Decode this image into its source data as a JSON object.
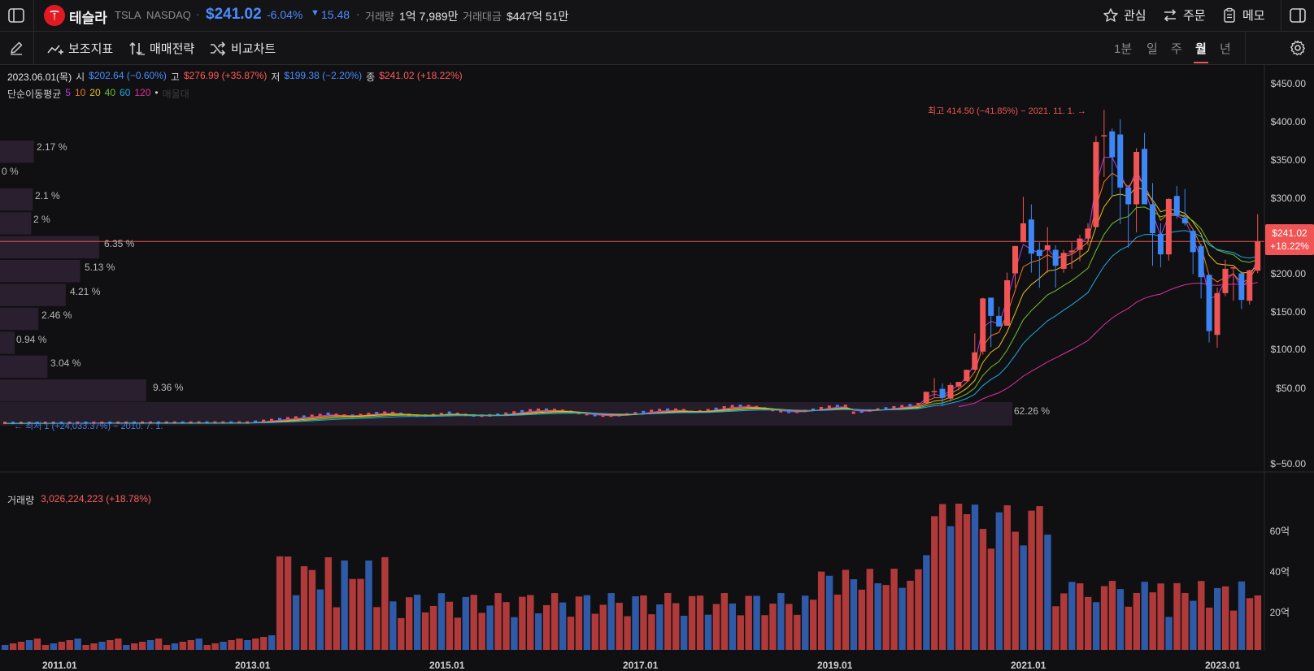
{
  "stock": {
    "name": "테슬라",
    "ticker": "TSLA",
    "exchange": "NASDAQ",
    "price": "$241.02",
    "change_pct": "-6.04%",
    "change_abs": "15.48",
    "volume_label": "거래량",
    "volume_value": "1억 7,989만",
    "amount_label": "거래대금",
    "amount_value": "$447억 51만"
  },
  "topbar": {
    "watch_label": "관심",
    "order_label": "주문",
    "memo_label": "메모"
  },
  "toolbar": {
    "indicator_label": "보조지표",
    "strategy_label": "매매전략",
    "compare_label": "비교차트",
    "periods": [
      "1분",
      "일",
      "주",
      "월",
      "년"
    ],
    "active_period": "월"
  },
  "ohlc": {
    "date": "2023.06.01(목)",
    "open_label": "시",
    "open": "$202.64 (−0.60%)",
    "high_label": "고",
    "high": "$276.99 (+35.87%)",
    "low_label": "저",
    "low": "$199.38 (−2.20%)",
    "close_label": "종",
    "close": "$241.02 (+18.22%)"
  },
  "ma": {
    "label": "단순이동평균",
    "periods": [
      {
        "p": "5",
        "color": "#b040e0"
      },
      {
        "p": "10",
        "color": "#f07820"
      },
      {
        "p": "20",
        "color": "#e8c020"
      },
      {
        "p": "40",
        "color": "#70c030"
      },
      {
        "p": "60",
        "color": "#20a8e0"
      },
      {
        "p": "120",
        "color": "#e030a0"
      }
    ],
    "trailing": "매물대"
  },
  "annotations": {
    "high": "최고 414.50 (−41.85%) − 2021. 11. 1. →",
    "low": "← 최저 1 (+24,033.37%) − 2010. 7. 1."
  },
  "price_axis": [
    "$450.00",
    "$400.00",
    "$350.00",
    "$300.00",
    "$200.00",
    "$150.00",
    "$100.00",
    "$50.00",
    "$−50.00"
  ],
  "price_tag": {
    "price": "$241.02",
    "pct": "+18.22%"
  },
  "volume_profile": [
    "2.17 %",
    "0 %",
    "2.1 %",
    "2 %",
    "6.35 %",
    "5.13 %",
    "4.21 %",
    "2.46 %",
    "0.94 %",
    "3.04 %",
    "9.36 %",
    "62.26 %"
  ],
  "volume_panel": {
    "label": "거래량",
    "value": "3,026,224,223 (+18.78%)",
    "axis": [
      "60억",
      "40억",
      "20억"
    ]
  },
  "time_axis": [
    "2011.01",
    "2013.01",
    "2015.01",
    "2017.01",
    "2019.01",
    "2021.01",
    "2023.01"
  ],
  "colors": {
    "up": "#f05454",
    "down": "#3d86f5",
    "accent": "#3d86f5",
    "background": "#101012"
  },
  "chart_data": {
    "type": "candlestick",
    "interval": "monthly",
    "y_unit": "USD",
    "ylim": [
      -50,
      470
    ],
    "candles": [
      {
        "x": "2020.01",
        "o": 28,
        "h": 43,
        "l": 28,
        "c": 43
      },
      {
        "x": "2020.02",
        "o": 44,
        "h": 61,
        "l": 36,
        "c": 44
      },
      {
        "x": "2020.03",
        "o": 47,
        "h": 54,
        "l": 24,
        "c": 35
      },
      {
        "x": "2020.04",
        "o": 34,
        "h": 55,
        "l": 30,
        "c": 52
      },
      {
        "x": "2020.05",
        "o": 50,
        "h": 56,
        "l": 45,
        "c": 56
      },
      {
        "x": "2020.06",
        "o": 57,
        "h": 72,
        "l": 57,
        "c": 72
      },
      {
        "x": "2020.07",
        "o": 72,
        "h": 120,
        "l": 72,
        "c": 95
      },
      {
        "x": "2020.08",
        "o": 96,
        "h": 167,
        "l": 92,
        "c": 166
      },
      {
        "x": "2020.09",
        "o": 167,
        "h": 167,
        "l": 102,
        "c": 143
      },
      {
        "x": "2020.10",
        "o": 143,
        "h": 155,
        "l": 130,
        "c": 129
      },
      {
        "x": "2020.11",
        "o": 130,
        "h": 200,
        "l": 130,
        "c": 190
      },
      {
        "x": "2020.12",
        "o": 199,
        "h": 235,
        "l": 180,
        "c": 235
      },
      {
        "x": "2021.01",
        "o": 240,
        "h": 300,
        "l": 240,
        "c": 265
      },
      {
        "x": "2021.02",
        "o": 270,
        "h": 290,
        "l": 200,
        "c": 225
      },
      {
        "x": "2021.03",
        "o": 230,
        "h": 240,
        "l": 180,
        "c": 222
      },
      {
        "x": "2021.04",
        "o": 230,
        "h": 260,
        "l": 200,
        "c": 236
      },
      {
        "x": "2021.05",
        "o": 230,
        "h": 236,
        "l": 180,
        "c": 209
      },
      {
        "x": "2021.06",
        "o": 205,
        "h": 230,
        "l": 200,
        "c": 226
      },
      {
        "x": "2021.07",
        "o": 227,
        "h": 240,
        "l": 205,
        "c": 229
      },
      {
        "x": "2021.08",
        "o": 230,
        "h": 250,
        "l": 215,
        "c": 245
      },
      {
        "x": "2021.09",
        "o": 245,
        "h": 265,
        "l": 236,
        "c": 258
      },
      {
        "x": "2021.10",
        "o": 260,
        "h": 380,
        "l": 260,
        "c": 372
      },
      {
        "x": "2021.11",
        "o": 381,
        "h": 414.5,
        "l": 326,
        "c": 381
      },
      {
        "x": "2021.12",
        "o": 386,
        "h": 390,
        "l": 300,
        "c": 352
      },
      {
        "x": "2022.01",
        "o": 382,
        "h": 402,
        "l": 264,
        "c": 312
      },
      {
        "x": "2022.02",
        "o": 312,
        "h": 315,
        "l": 233,
        "c": 290
      },
      {
        "x": "2022.03",
        "o": 290,
        "h": 364,
        "l": 253,
        "c": 359
      },
      {
        "x": "2022.04",
        "o": 363,
        "h": 384,
        "l": 290,
        "c": 290
      },
      {
        "x": "2022.05",
        "o": 290,
        "h": 318,
        "l": 209,
        "c": 252
      },
      {
        "x": "2022.06",
        "o": 251,
        "h": 265,
        "l": 207,
        "c": 224
      },
      {
        "x": "2022.07",
        "o": 224,
        "h": 298,
        "l": 216,
        "c": 297
      },
      {
        "x": "2022.08",
        "o": 301,
        "h": 314,
        "l": 271,
        "c": 275
      },
      {
        "x": "2022.09",
        "o": 272,
        "h": 310,
        "l": 262,
        "c": 265
      },
      {
        "x": "2022.10",
        "o": 255,
        "h": 257,
        "l": 198,
        "c": 227
      },
      {
        "x": "2022.11",
        "o": 235,
        "h": 238,
        "l": 166,
        "c": 194
      },
      {
        "x": "2022.12",
        "o": 197,
        "h": 198,
        "l": 108,
        "c": 123
      },
      {
        "x": "2023.01",
        "o": 118,
        "h": 180,
        "l": 101,
        "c": 173
      },
      {
        "x": "2023.02",
        "o": 173,
        "h": 217,
        "l": 169,
        "c": 205
      },
      {
        "x": "2023.03",
        "o": 206,
        "h": 207,
        "l": 163,
        "c": 207
      },
      {
        "x": "2023.04",
        "o": 199,
        "h": 202,
        "l": 152,
        "c": 164
      },
      {
        "x": "2023.05",
        "o": 163,
        "h": 204,
        "l": 158,
        "c": 203
      },
      {
        "x": "2023.06",
        "o": 202.64,
        "h": 276.99,
        "l": 199.38,
        "c": 241.02
      }
    ],
    "early_price_range": {
      "from": "2010.07",
      "to": "2019.12",
      "min": 1,
      "max": 28
    }
  }
}
